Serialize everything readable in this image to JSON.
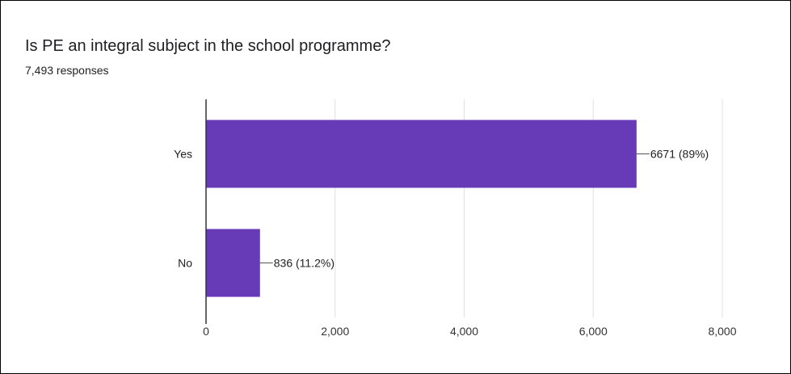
{
  "card": {
    "title": "Is PE an integral subject in the school programme?",
    "responses": "7,493 responses"
  },
  "chart_data": {
    "type": "bar",
    "orientation": "horizontal",
    "title": "Is PE an integral subject in the school programme?",
    "subtitle": "7,493 responses",
    "categories": [
      "Yes",
      "No"
    ],
    "values": [
      6671,
      836
    ],
    "data_labels": [
      "6671 (89%)",
      "836 (11.2%)"
    ],
    "x_ticks": [
      0,
      2000,
      4000,
      6000,
      8000
    ],
    "x_tick_labels": [
      "0",
      "2,000",
      "4,000",
      "6,000",
      "8,000"
    ],
    "xlim": [
      0,
      8000
    ],
    "grid": true,
    "bar_color": "#673ab7",
    "grid_color": "#e0e0e0",
    "axis_color": "#333333",
    "text_color": "#202124",
    "label_color": "#333333"
  }
}
